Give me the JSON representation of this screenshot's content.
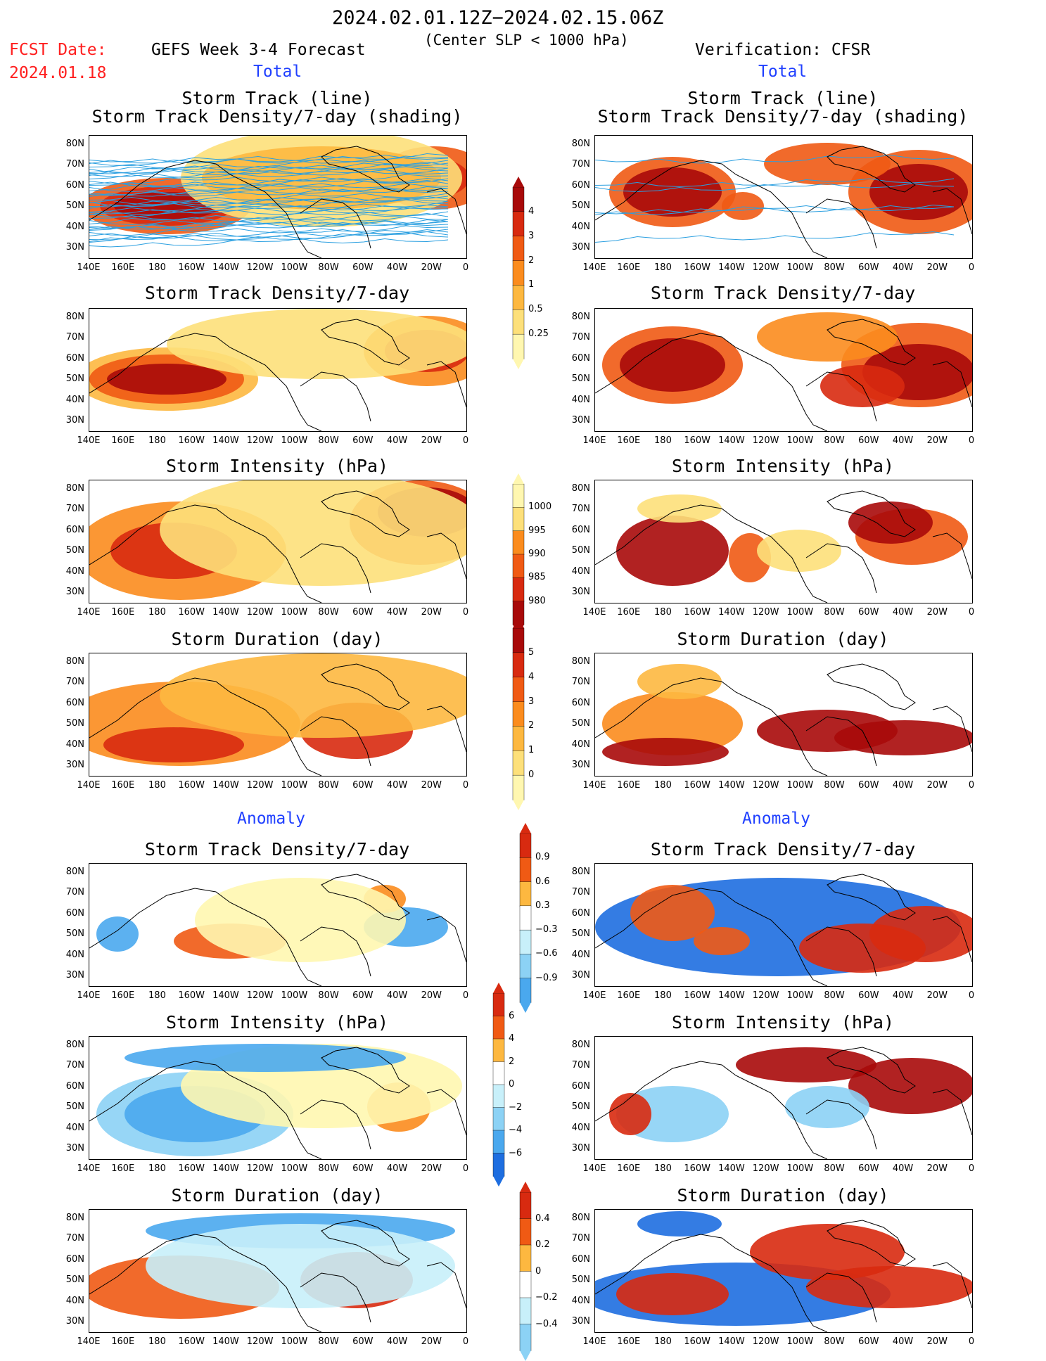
{
  "header": {
    "date_range": "2024.02.01.12Z−2024.02.15.06Z",
    "criterion": "(Center SLP < 1000 hPa)",
    "fcst_label": "FCST Date:",
    "fcst_date": "2024.01.18",
    "left_title": "GEFS Week 3-4 Forecast",
    "right_title": "Verification: CFSR",
    "total_label_left": "Total",
    "total_label_right": "Total",
    "anomaly_label_left": "Anomaly",
    "anomaly_label_right": "Anomaly"
  },
  "panel_titles": {
    "track": "Storm Track (line)\nStorm Track Density/7-day (shading)",
    "density": "Storm Track Density/7-day",
    "intensity": "Storm Intensity (hPa)",
    "duration": "Storm Duration (day)"
  },
  "axes": {
    "lat_labels": [
      "80N",
      "70N",
      "60N",
      "50N",
      "40N",
      "30N"
    ],
    "lon_labels": [
      "140E",
      "160E",
      "180",
      "160W",
      "140W",
      "120W",
      "100W",
      "80W",
      "60W",
      "40W",
      "20W",
      "0"
    ]
  },
  "colorbars": {
    "total_density": [
      "4",
      "3",
      "2",
      "1",
      "0.5",
      "0.25"
    ],
    "total_intensity": [
      "1000",
      "995",
      "990",
      "985",
      "980"
    ],
    "total_duration": [
      "5",
      "4",
      "3",
      "2",
      "1",
      "0"
    ],
    "anom_density": [
      "0.9",
      "0.6",
      "0.3",
      "−0.3",
      "−0.6",
      "−0.9"
    ],
    "anom_intensity": [
      "6",
      "4",
      "2",
      "0",
      "−2",
      "−4",
      "−6"
    ],
    "anom_duration": [
      "0.4",
      "0.2",
      "0",
      "−0.2",
      "−0.4"
    ]
  },
  "colors": {
    "warm": [
      "#fff7b0",
      "#fde07a",
      "#fdb840",
      "#fb8c1e",
      "#f05a14",
      "#d82a10",
      "#a80a0a"
    ],
    "cool": [
      "#c8f0fa",
      "#8cd2f5",
      "#4aa8ee",
      "#1e6ee0"
    ],
    "track_line": "#2a9fe0"
  }
}
